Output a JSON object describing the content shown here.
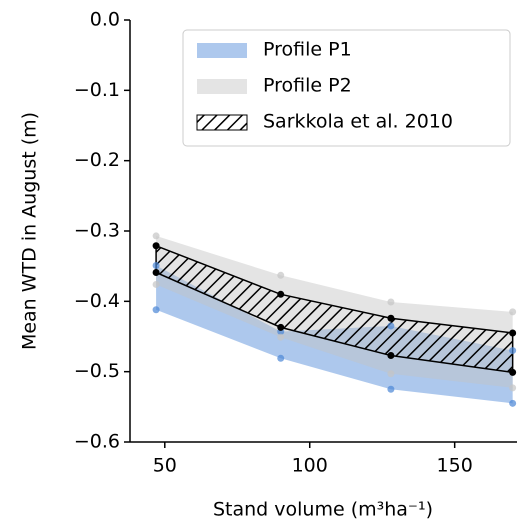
{
  "chart_data": {
    "type": "band",
    "x_label": "Stand volume (m³ha⁻¹)",
    "y_label": "Mean WTD in August (m)",
    "x": [
      47,
      90,
      128,
      170
    ],
    "xlim": [
      38,
      171.5
    ],
    "xticks": [
      50,
      100,
      150
    ],
    "ylim": [
      -0.6,
      0
    ],
    "yticks": [
      {
        "value": 0,
        "label": "0.0"
      },
      {
        "value": -0.1,
        "label": "−0.1"
      },
      {
        "value": -0.2,
        "label": "−0.2"
      },
      {
        "value": -0.3,
        "label": "−0.3"
      },
      {
        "value": -0.4,
        "label": "−0.4"
      },
      {
        "value": -0.5,
        "label": "−0.5"
      },
      {
        "value": -0.6,
        "label": "−0.6"
      }
    ],
    "legend": "upper right",
    "series": [
      {
        "name": "Profile P1",
        "color": "#4a86d6",
        "hatch": false,
        "upper": [
          -0.349,
          -0.443,
          -0.435,
          -0.47
        ],
        "lower": [
          -0.412,
          -0.481,
          -0.525,
          -0.545
        ]
      },
      {
        "name": "Profile P2",
        "color": "#c4c4c4",
        "hatch": false,
        "upper": [
          -0.307,
          -0.363,
          -0.401,
          -0.415
        ],
        "lower": [
          -0.376,
          -0.451,
          -0.503,
          -0.523
        ]
      },
      {
        "name": "Sarkkola et al. 2010",
        "color": "#000000",
        "hatch": true,
        "upper": [
          -0.321,
          -0.39,
          -0.424,
          -0.445
        ],
        "lower": [
          -0.359,
          -0.437,
          -0.477,
          -0.501
        ]
      }
    ]
  }
}
